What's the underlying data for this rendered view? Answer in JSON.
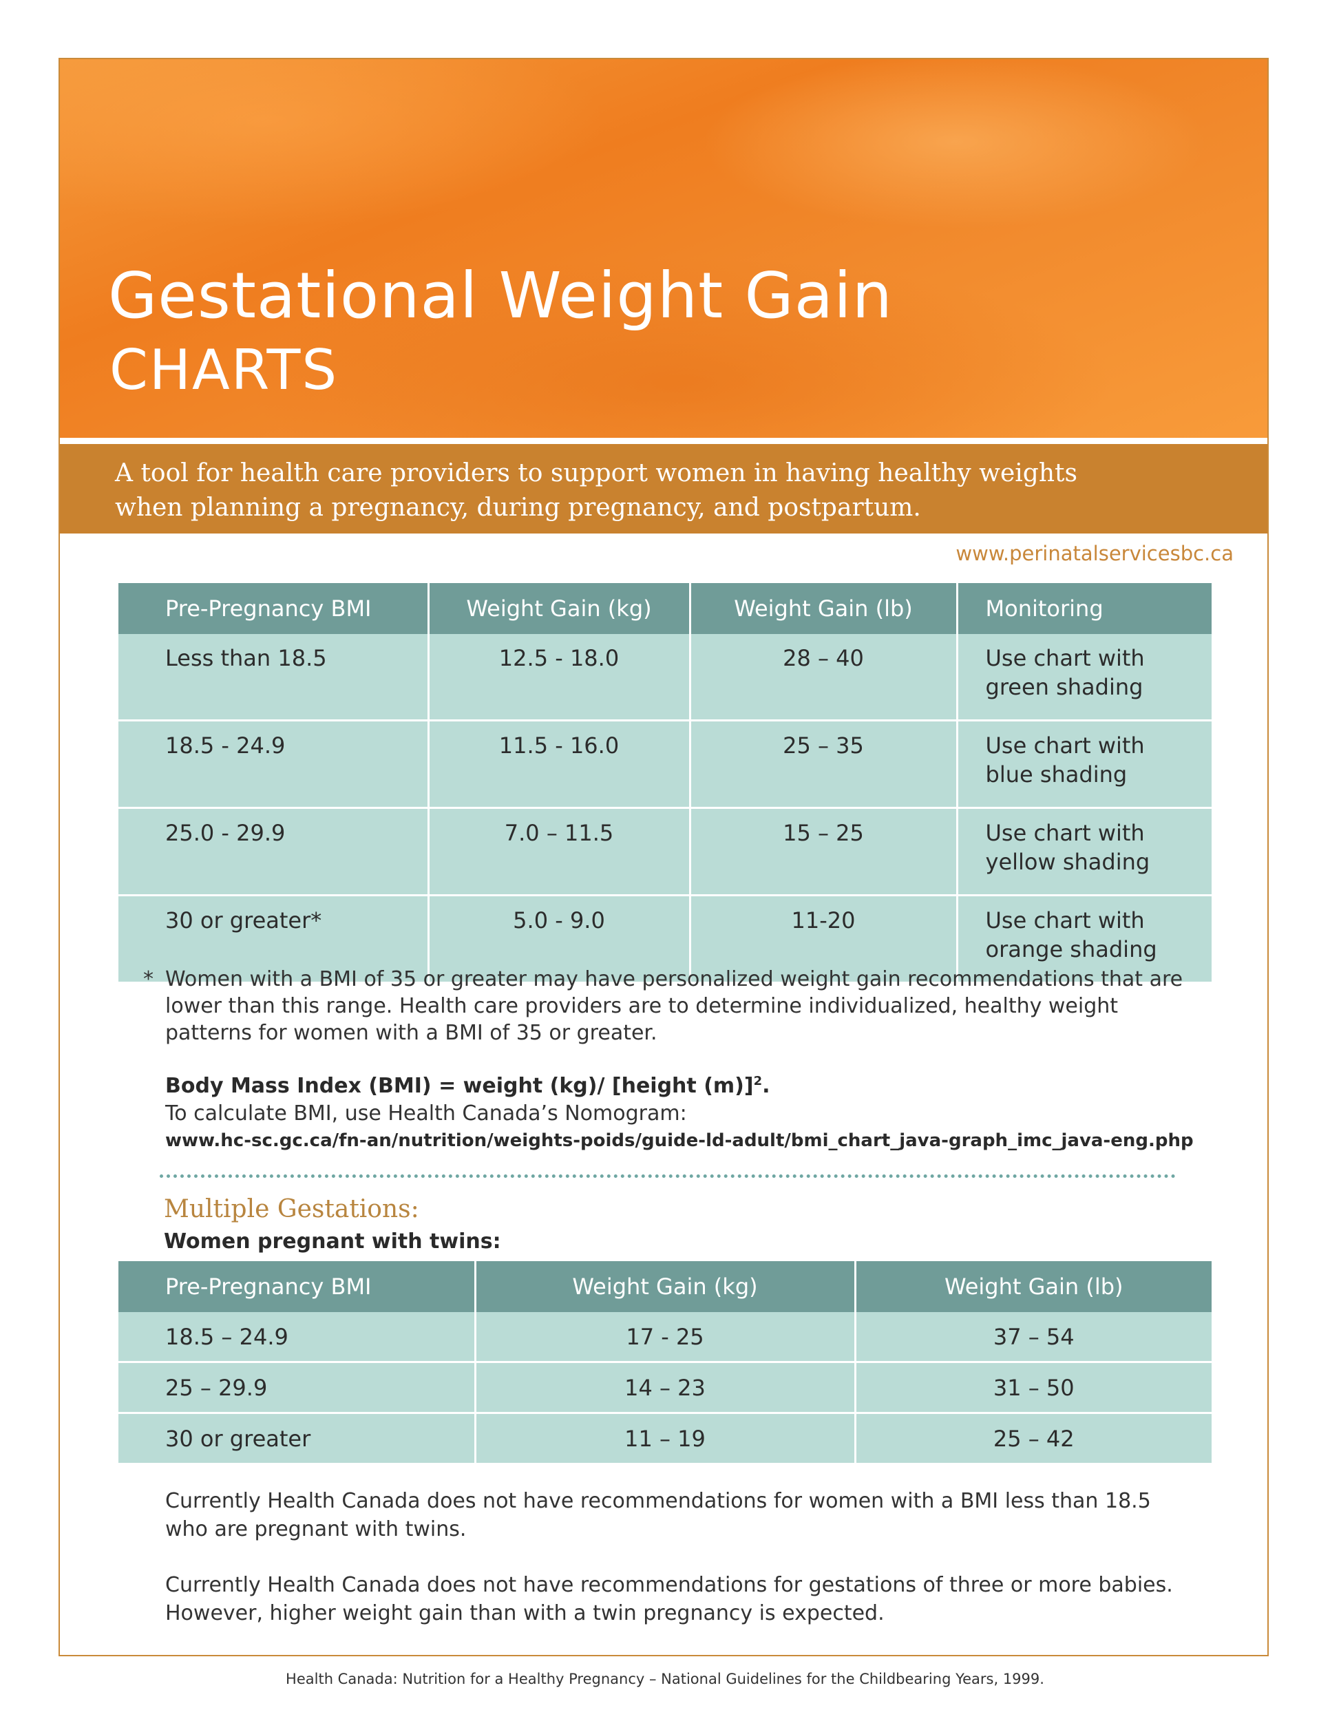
{
  "header": {
    "title": "Gestational Weight Gain",
    "subtitle": "CHARTS",
    "tagline": "A tool for health care providers to support women in having healthy weights when planning a pregnancy, during pregnancy, and postpartum.",
    "website": "www.perinatalservicesbc.ca"
  },
  "colors": {
    "brand_orange": "#ef7d1f",
    "band_brown": "#c9822f",
    "table_header": "#709c98",
    "table_cell": "#badcd6",
    "accent_gold": "#b8853f"
  },
  "singleton_table": {
    "columns": [
      "Pre-Pregnancy BMI",
      "Weight Gain (kg)",
      "Weight Gain (lb)",
      "Monitoring"
    ],
    "rows": [
      {
        "bmi": "Less than 18.5",
        "kg": "12.5 - 18.0",
        "lb": "28 – 40",
        "monitoring_line1": "Use chart with",
        "monitoring_line2": "green shading"
      },
      {
        "bmi": "18.5 - 24.9",
        "kg": "11.5 - 16.0",
        "lb": "25 – 35",
        "monitoring_line1": "Use chart with",
        "monitoring_line2": "blue shading"
      },
      {
        "bmi": "25.0 - 29.9",
        "kg": "7.0 – 11.5",
        "lb": "15 – 25",
        "monitoring_line1": "Use chart with",
        "monitoring_line2": "yellow shading"
      },
      {
        "bmi": "30 or greater*",
        "kg": "5.0 - 9.0",
        "lb": "11-20",
        "monitoring_line1": "Use chart with",
        "monitoring_line2": "orange shading"
      }
    ]
  },
  "footnote": {
    "marker": "*",
    "text": "Women with a BMI of 35 or greater may have personalized weight gain recommendations that are lower than this range. Health care providers are to determine individualized, healthy weight patterns for women with a BMI of 35 or greater."
  },
  "bmi": {
    "formula": "Body Mass Index (BMI) = weight (kg)/ [height (m)]",
    "formula_sup": "2",
    "formula_end": ".",
    "instruction": "To calculate BMI, use Health Canada’s Nomogram:",
    "url": "www.hc-sc.gc.ca/fn-an/nutrition/weights-poids/guide-ld-adult/bmi_chart_java-graph_imc_java-eng.php"
  },
  "multiple": {
    "heading": "Multiple Gestations:",
    "label": "Women pregnant with twins:",
    "columns": [
      "Pre-Pregnancy BMI",
      "Weight Gain (kg)",
      "Weight Gain (lb)"
    ],
    "rows": [
      {
        "bmi": "18.5 – 24.9",
        "kg": "17 - 25",
        "lb": "37 – 54"
      },
      {
        "bmi": "25 – 29.9",
        "kg": "14 – 23",
        "lb": "31 – 50"
      },
      {
        "bmi": "30 or greater",
        "kg": "11 – 19",
        "lb": "25 – 42"
      }
    ]
  },
  "notes": [
    "Currently Health Canada does not have recommendations for women with a BMI less than 18.5 who are pregnant with twins.",
    "Currently Health Canada does not have recommendations for gestations of three or more babies. However, higher weight gain than with a twin pregnancy is expected."
  ],
  "citation": "Health Canada: Nutrition for a Healthy Pregnancy – National Guidelines for the Childbearing Years, 1999."
}
